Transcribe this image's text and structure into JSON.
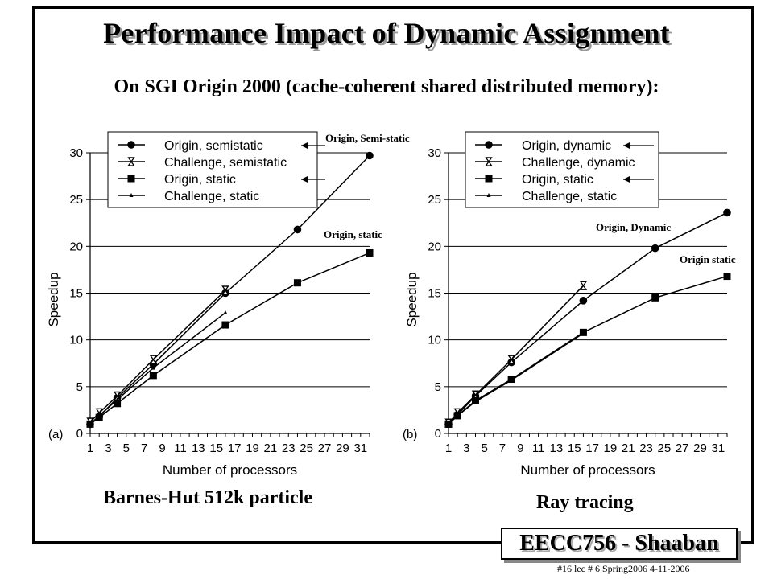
{
  "title": "Performance Impact of Dynamic Assignment",
  "subtitle": "On SGI Origin 2000 (cache-coherent shared distributed memory):",
  "captions": {
    "left": "Barnes-Hut  512k particle",
    "right": "Ray tracing"
  },
  "footer": {
    "badge": "EECC756 - Shaaban",
    "note": "#16  lec # 6  Spring2006  4-11-2006"
  },
  "chart_data": [
    {
      "type": "line",
      "panel_label": "(a)",
      "xlabel": "Number of processors",
      "ylabel": "Speedup",
      "x_ticks": [
        "1",
        "3",
        "5",
        "7",
        "9",
        "11",
        "13",
        "15",
        "17",
        "19",
        "21",
        "23",
        "25",
        "27",
        "29",
        "31"
      ],
      "y_ticks": [
        "0",
        "5",
        "10",
        "15",
        "20",
        "25",
        "30"
      ],
      "xlim": [
        1,
        32
      ],
      "ylim": [
        0,
        30
      ],
      "grid": "horizontal",
      "legend_position": "top-left",
      "series": [
        {
          "name": "Origin, semistatic",
          "marker": "circle",
          "arrow": true,
          "x": [
            1,
            2,
            4,
            8,
            16,
            24,
            32
          ],
          "y": [
            1,
            1.8,
            3.8,
            7.4,
            15.0,
            21.8,
            29.7
          ]
        },
        {
          "name": "Challenge, semistatic",
          "marker": "hourglass",
          "arrow": false,
          "x": [
            1,
            2,
            4,
            8,
            16
          ],
          "y": [
            1.2,
            2.2,
            4.0,
            7.9,
            15.3
          ]
        },
        {
          "name": "Origin, static",
          "marker": "square",
          "arrow": true,
          "x": [
            1,
            2,
            4,
            8,
            16,
            24,
            32
          ],
          "y": [
            1,
            1.7,
            3.2,
            6.2,
            11.6,
            16.1,
            19.3
          ]
        },
        {
          "name": "Challenge, static",
          "marker": "small",
          "arrow": false,
          "x": [
            1,
            2,
            4,
            8,
            16
          ],
          "y": [
            1,
            1.9,
            3.6,
            7.0,
            12.9
          ]
        }
      ],
      "annotations": [
        {
          "text": "Origin, Semi-static",
          "series": 0
        },
        {
          "text": "Origin, static",
          "series": 2
        }
      ]
    },
    {
      "type": "line",
      "panel_label": "(b)",
      "xlabel": "Number of processors",
      "ylabel": "Speedup",
      "x_ticks": [
        "1",
        "3",
        "5",
        "7",
        "9",
        "11",
        "13",
        "15",
        "17",
        "19",
        "21",
        "23",
        "25",
        "27",
        "29",
        "31"
      ],
      "y_ticks": [
        "0",
        "5",
        "10",
        "15",
        "20",
        "25",
        "30"
      ],
      "xlim": [
        1,
        32
      ],
      "ylim": [
        0,
        30
      ],
      "grid": "horizontal",
      "legend_position": "top-left",
      "series": [
        {
          "name": "Origin, dynamic",
          "marker": "circle",
          "arrow": true,
          "x": [
            1,
            2,
            4,
            8,
            16,
            24,
            32
          ],
          "y": [
            1,
            2.0,
            4.0,
            7.6,
            14.2,
            19.8,
            23.6
          ]
        },
        {
          "name": "Challenge, dynamic",
          "marker": "hourglass",
          "arrow": false,
          "x": [
            1,
            2,
            4,
            8,
            16
          ],
          "y": [
            1.1,
            2.2,
            4.1,
            7.9,
            15.8
          ]
        },
        {
          "name": "Origin, static",
          "marker": "square",
          "arrow": true,
          "x": [
            1,
            2,
            4,
            8,
            16,
            24,
            32
          ],
          "y": [
            1,
            1.9,
            3.5,
            5.8,
            10.8,
            14.5,
            16.8
          ]
        },
        {
          "name": "Challenge, static",
          "marker": "small",
          "arrow": false,
          "x": [
            1,
            2,
            4,
            8,
            16
          ],
          "y": [
            1,
            1.9,
            3.4,
            5.7,
            10.7
          ]
        }
      ],
      "annotations": [
        {
          "text": "Origin, Dynamic",
          "series": 0
        },
        {
          "text": "Origin static",
          "series": 2
        }
      ]
    }
  ]
}
